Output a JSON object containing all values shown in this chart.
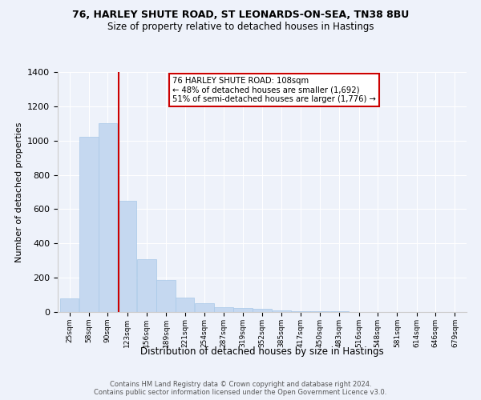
{
  "title1": "76, HARLEY SHUTE ROAD, ST LEONARDS-ON-SEA, TN38 8BU",
  "title2": "Size of property relative to detached houses in Hastings",
  "xlabel": "Distribution of detached houses by size in Hastings",
  "ylabel": "Number of detached properties",
  "bins": [
    25,
    58,
    90,
    123,
    156,
    189,
    221,
    254,
    287,
    319,
    352,
    385,
    417,
    450,
    483,
    516,
    548,
    581,
    614,
    646,
    679
  ],
  "counts": [
    80,
    1020,
    1100,
    650,
    310,
    185,
    85,
    50,
    30,
    25,
    20,
    10,
    5,
    5,
    3,
    0,
    0,
    0,
    0,
    0,
    0
  ],
  "bar_color": "#c5d8f0",
  "bar_edge_color": "#a8c8e8",
  "vline_x": 108,
  "vline_color": "#cc0000",
  "annotation_text": "76 HARLEY SHUTE ROAD: 108sqm\n← 48% of detached houses are smaller (1,692)\n51% of semi-detached houses are larger (1,776) →",
  "annotation_box_color": "#ffffff",
  "annotation_box_edge": "#cc0000",
  "ylim": [
    0,
    1400
  ],
  "background_color": "#eef2fa",
  "footer": "Contains HM Land Registry data © Crown copyright and database right 2024.\nContains public sector information licensed under the Open Government Licence v3.0."
}
